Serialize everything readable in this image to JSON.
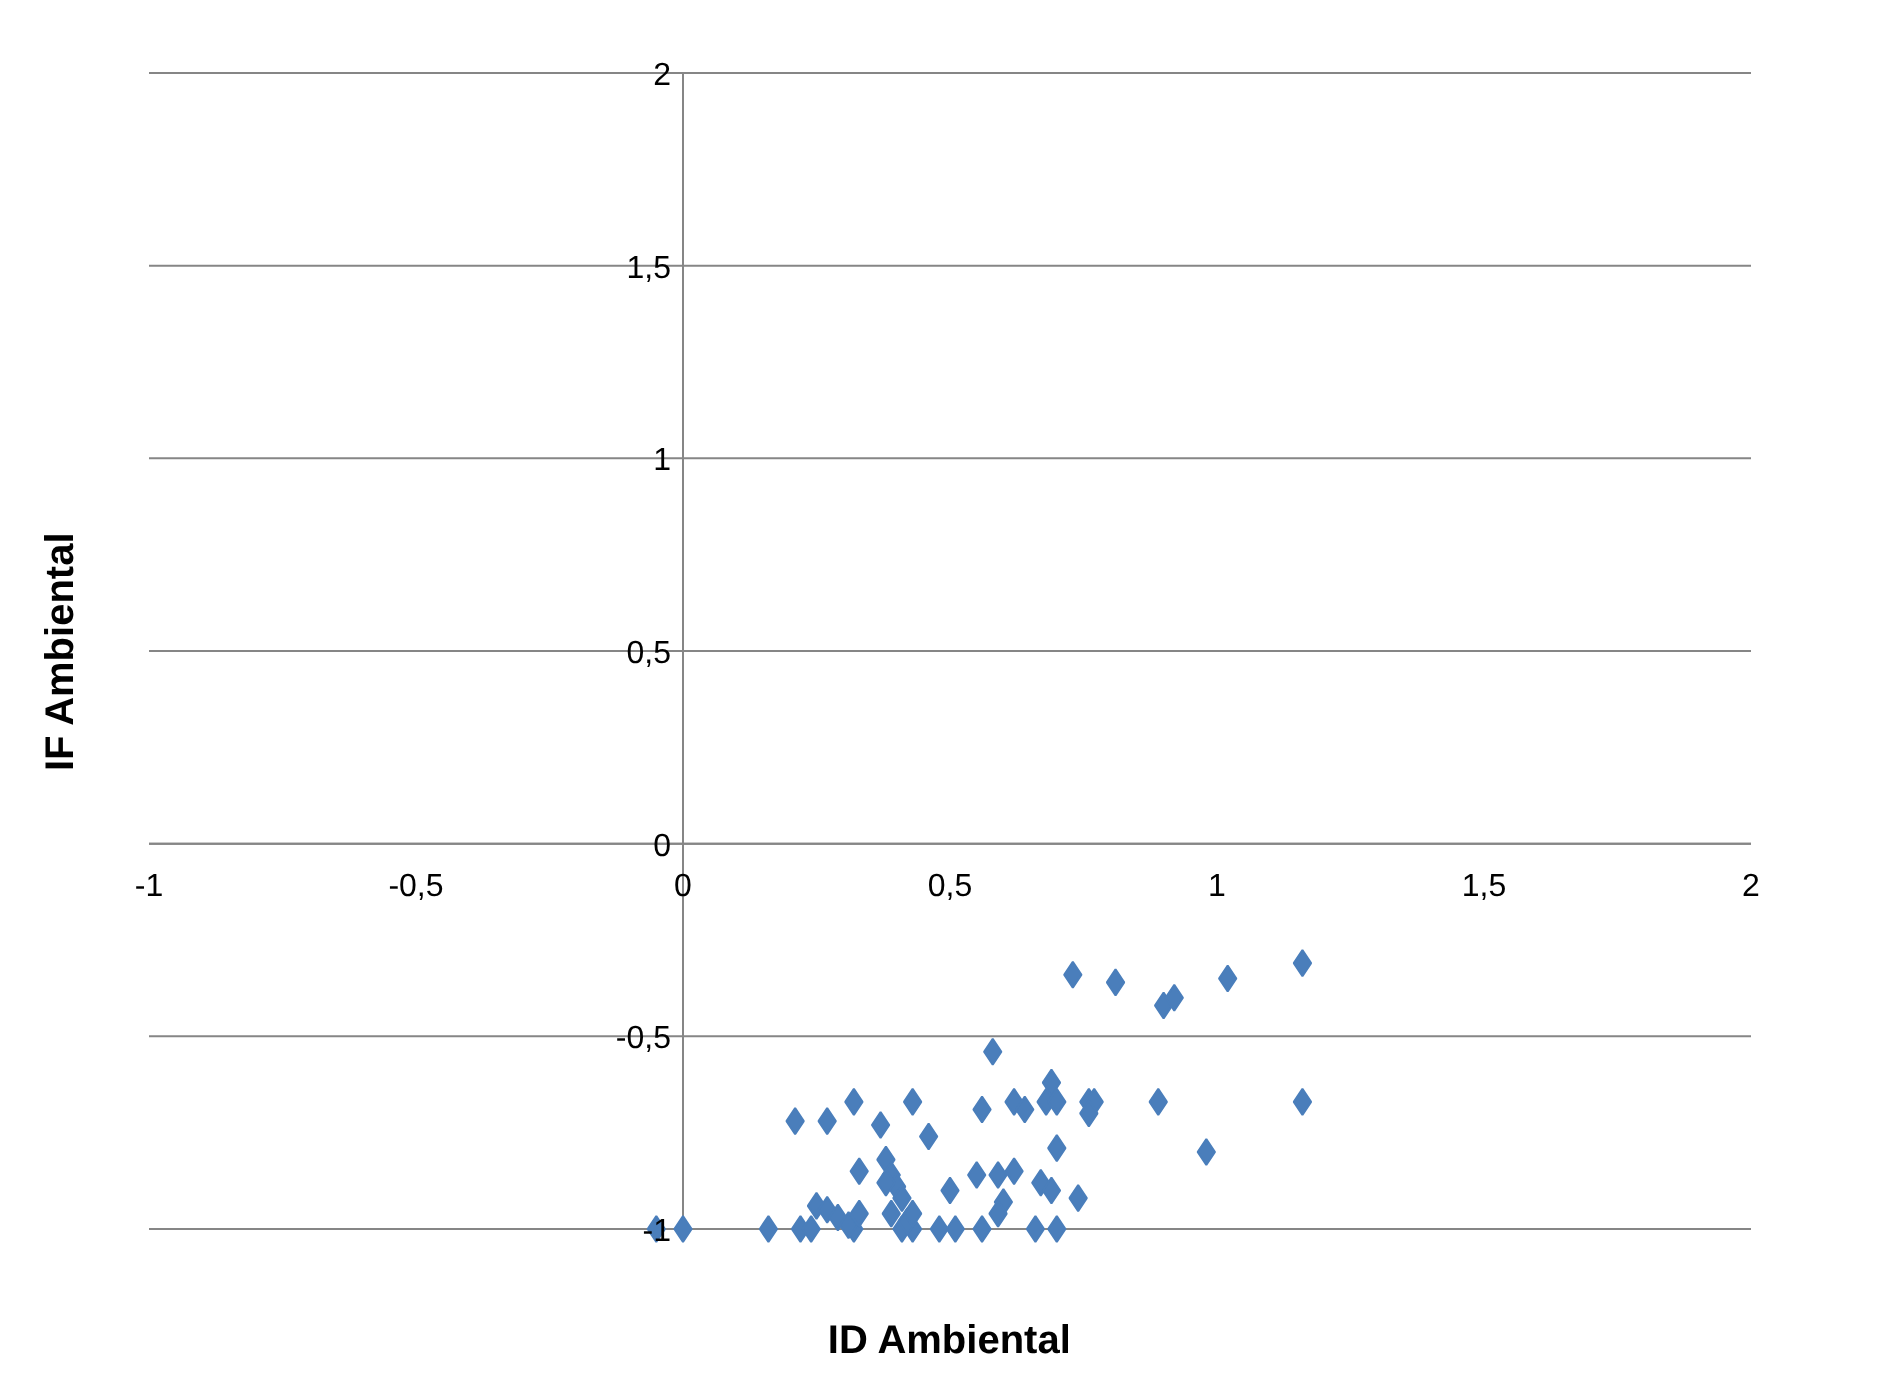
{
  "chart_data": {
    "type": "scatter",
    "xlabel": "ID Ambiental",
    "ylabel": "IF Ambiental",
    "xlim": [
      -1,
      2
    ],
    "ylim": [
      -1,
      2
    ],
    "xticks": [
      -1,
      {
        "value": -0.5,
        "label": "-0,5"
      },
      0,
      {
        "value": 0.5,
        "label": "0,5"
      },
      1,
      {
        "value": 1.5,
        "label": "1,5"
      },
      2
    ],
    "yticks": [
      -1,
      {
        "value": -0.5,
        "label": "-0,5"
      },
      0,
      {
        "value": 0.5,
        "label": "0,5"
      },
      1,
      {
        "value": 1.5,
        "label": "1,5"
      },
      2
    ],
    "grid": "y",
    "marker": "diamond",
    "series": [
      {
        "color": "#4a7ebb",
        "x": [
          -0.05,
          0,
          0.16,
          0.22,
          0.24,
          0.32,
          0.43,
          0.41,
          0.48,
          0.51,
          0.56,
          0.66,
          0.7,
          0.21,
          0.27,
          0.32,
          0.37,
          0.43,
          0.46,
          0.58,
          0.56,
          0.62,
          0.64,
          0.69,
          0.68,
          0.7,
          0.7,
          0.76,
          0.77,
          0.76,
          0.73,
          0.81,
          0.9,
          0.92,
          1.02,
          1.16,
          0.89,
          1.16,
          0.98,
          0.74,
          0.38,
          0.39,
          0.33,
          0.4,
          0.41,
          0.25,
          0.27,
          0.29,
          0.31,
          0.33,
          0.39,
          0.42,
          0.43,
          0.5,
          0.55,
          0.59,
          0.62,
          0.6,
          0.59,
          0.67,
          0.69,
          0.38
        ],
        "values": [
          -1,
          -1,
          -1,
          -1,
          -1,
          -1,
          -1,
          -1,
          -1,
          -1,
          -1,
          -1,
          -1,
          -0.72,
          -0.72,
          -0.67,
          -0.73,
          -0.67,
          -0.76,
          -0.54,
          -0.69,
          -0.67,
          -0.69,
          -0.62,
          -0.67,
          -0.67,
          -0.79,
          -0.67,
          -0.67,
          -0.7,
          -0.34,
          -0.36,
          -0.42,
          -0.4,
          -0.35,
          -0.31,
          -0.67,
          -0.67,
          -0.8,
          -0.92,
          -0.82,
          -0.86,
          -0.85,
          -0.89,
          -0.92,
          -0.94,
          -0.95,
          -0.97,
          -0.99,
          -0.96,
          -0.96,
          -0.98,
          -0.96,
          -0.9,
          -0.86,
          -0.86,
          -0.85,
          -0.93,
          -0.96,
          -0.88,
          -0.9,
          -0.88
        ]
      }
    ]
  }
}
